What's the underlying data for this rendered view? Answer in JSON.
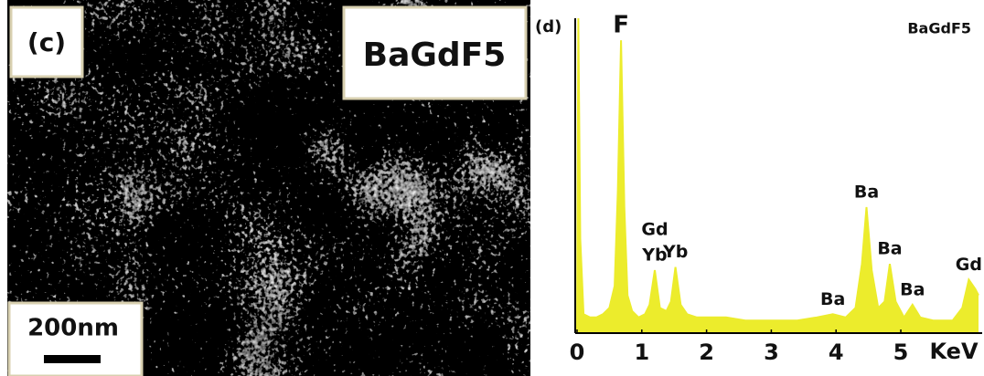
{
  "panel_c": {
    "label": "(c)",
    "material": "BaGdF5",
    "scale_bar": "200nm"
  },
  "chart_data": {
    "type": "line",
    "panel_label": "(d)",
    "title": "BaGdF5",
    "x_label": "KeV",
    "color": "#ecec2c",
    "x": [
      0,
      0.02,
      0.05,
      0.1,
      0.2,
      0.3,
      0.4,
      0.5,
      0.58,
      0.63,
      0.68,
      0.73,
      0.78,
      0.85,
      0.95,
      1.05,
      1.12,
      1.2,
      1.28,
      1.38,
      1.45,
      1.52,
      1.6,
      1.7,
      1.85,
      2.0,
      2.3,
      2.6,
      3.0,
      3.4,
      3.7,
      3.95,
      4.15,
      4.3,
      4.4,
      4.47,
      4.55,
      4.65,
      4.75,
      4.83,
      4.92,
      5.05,
      5.18,
      5.3,
      5.5,
      5.8,
      5.95,
      6.05,
      6.15,
      6.2
    ],
    "values": [
      0,
      100,
      30,
      6,
      5,
      5,
      6,
      8,
      15,
      45,
      93,
      40,
      12,
      7,
      5,
      6,
      9,
      20,
      8,
      7,
      10,
      21,
      9,
      6,
      5,
      5,
      5,
      4,
      4,
      4,
      5,
      6,
      5,
      8,
      22,
      40,
      20,
      8,
      10,
      22,
      10,
      5,
      9,
      5,
      4,
      4,
      8,
      17,
      14,
      12
    ],
    "xlim": [
      0,
      6.2
    ],
    "ylim": [
      0,
      100
    ],
    "xticks": [
      0,
      1,
      2,
      3,
      4,
      5
    ],
    "annotations": [
      {
        "text": "F",
        "x": 0.68
      },
      {
        "text": "Yb",
        "x": 1.2
      },
      {
        "text": "Gd",
        "x": 1.2
      },
      {
        "text": "Yb",
        "x": 1.52
      },
      {
        "text": "Ba",
        "x": 3.95
      },
      {
        "text": "Ba",
        "x": 4.47
      },
      {
        "text": "Ba",
        "x": 4.83
      },
      {
        "text": "Ba",
        "x": 5.18
      },
      {
        "text": "Gd",
        "x": 6.05
      }
    ]
  }
}
